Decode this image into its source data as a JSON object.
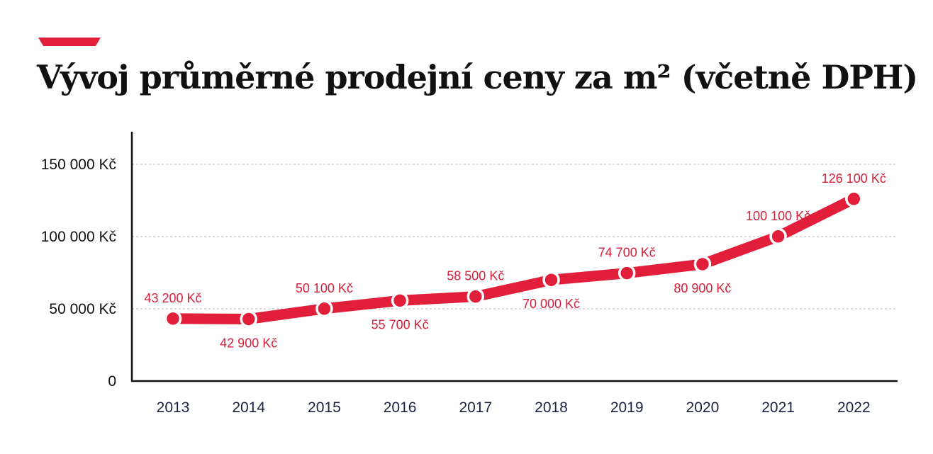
{
  "title": "Vývoj průměrné prodejní ceny za m² (včetně DPH)",
  "colors": {
    "accent": "#e11f3a",
    "line": "#e11f3a",
    "label": "#d5203a",
    "axis": "#111111",
    "grid": "#b5b5b5"
  },
  "chart_data": {
    "type": "line",
    "title": "Vývoj průměrné prodejní ceny za m² (včetně DPH)",
    "xlabel": "",
    "ylabel": "",
    "categories": [
      "2013",
      "2014",
      "2015",
      "2016",
      "2017",
      "2018",
      "2019",
      "2020",
      "2021",
      "2022"
    ],
    "values": [
      43200,
      42900,
      50100,
      55700,
      58500,
      70000,
      74700,
      80900,
      100100,
      126100
    ],
    "data_labels": [
      "43 200 Kč",
      "42 900 Kč",
      "50 100 Kč",
      "55 700 Kč",
      "58 500 Kč",
      "70 000 Kč",
      "74 700 Kč",
      "80 900 Kč",
      "100 100 Kč",
      "126 100 Kč"
    ],
    "label_position": [
      "above",
      "below",
      "above",
      "below",
      "above",
      "below",
      "above",
      "below",
      "above",
      "above"
    ],
    "ylim": [
      0,
      150000
    ],
    "y_ticks": [
      0,
      50000,
      100000,
      150000
    ],
    "y_tick_labels": [
      "0",
      "50 000 Kč",
      "100 000 Kč",
      "150 000 Kč"
    ],
    "grid": "horizontal dashed",
    "legend": "none"
  }
}
